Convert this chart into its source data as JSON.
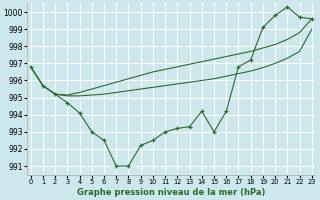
{
  "xlabel": "Graphe pression niveau de la mer (hPa)",
  "background_color": "#cce8ed",
  "grid_color": "#ffffff",
  "line_color": "#2d6a2d",
  "ylim": [
    990.5,
    1000.5
  ],
  "xlim": [
    -0.3,
    23.3
  ],
  "yticks": [
    991,
    992,
    993,
    994,
    995,
    996,
    997,
    998,
    999,
    1000
  ],
  "xticks": [
    0,
    1,
    2,
    3,
    4,
    5,
    6,
    7,
    8,
    9,
    10,
    11,
    12,
    13,
    14,
    15,
    16,
    17,
    18,
    19,
    20,
    21,
    22,
    23
  ],
  "line_jagged": [
    996.8,
    995.7,
    995.2,
    994.7,
    994.1,
    993.0,
    992.5,
    991.0,
    991.0,
    992.2,
    992.5,
    993.0,
    993.2,
    993.3,
    994.2,
    993.0,
    994.2,
    996.8,
    997.2,
    999.1,
    999.8,
    1000.3,
    999.7,
    999.6
  ],
  "line_upper": [
    996.8,
    995.7,
    995.2,
    995.15,
    995.3,
    995.5,
    995.7,
    995.9,
    996.1,
    996.3,
    996.5,
    996.65,
    996.8,
    996.95,
    997.1,
    997.25,
    997.4,
    997.55,
    997.7,
    997.9,
    998.1,
    998.4,
    998.8,
    999.6
  ],
  "line_lower": [
    996.8,
    995.7,
    995.2,
    995.1,
    995.1,
    995.15,
    995.2,
    995.3,
    995.4,
    995.5,
    995.6,
    995.7,
    995.8,
    995.9,
    996.0,
    996.1,
    996.25,
    996.4,
    996.55,
    996.75,
    997.0,
    997.3,
    997.7,
    999.0
  ],
  "ytick_fontsize": 5.5,
  "xtick_fontsize": 4.8,
  "xlabel_fontsize": 6.0
}
